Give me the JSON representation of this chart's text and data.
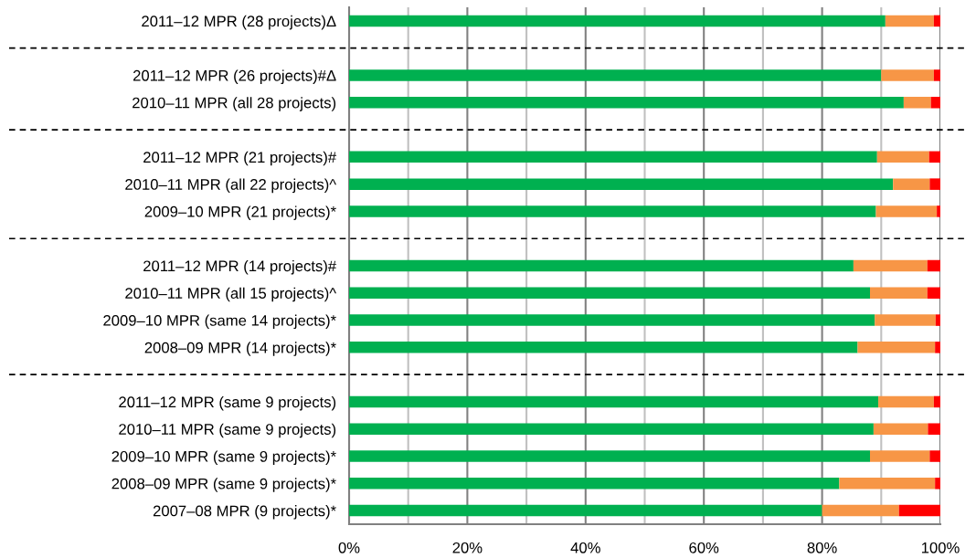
{
  "chart_data": {
    "type": "bar",
    "orientation": "horizontal",
    "stacked": true,
    "categories": [
      "2011–12 MPR (28 projects)Δ",
      null,
      "2011–12 MPR (26 projects)#Δ",
      "2010–11 MPR (all 28 projects)",
      null,
      "2011–12 MPR (21 projects)#",
      "2010–11 MPR (all 22 projects)^",
      "2009–10 MPR (21 projects)*",
      null,
      "2011–12 MPR (14 projects)#",
      "2010–11 MPR (all 15 projects)^",
      "2009–10 MPR (same 14 projects)*",
      "2008–09 MPR (14 projects)*",
      null,
      "2011–12 MPR (same 9 projects)",
      "2010–11 MPR (same 9 projects)",
      "2009–10 MPR (same 9 projects)*",
      "2008–09 MPR (same 9 projects)*",
      "2007–08 MPR (9 projects)*"
    ],
    "series": [
      {
        "color": "#00b050",
        "values": [
          90.7,
          null,
          90.0,
          93.8,
          null,
          89.3,
          92.0,
          89.1,
          null,
          85.3,
          88.1,
          88.9,
          86.0,
          null,
          89.5,
          88.7,
          88.1,
          82.9,
          80.0
        ]
      },
      {
        "color": "#f79646",
        "values": [
          8.2,
          null,
          8.9,
          4.6,
          null,
          8.8,
          6.2,
          10.3,
          null,
          12.5,
          9.7,
          10.3,
          13.1,
          null,
          9.4,
          9.2,
          10.1,
          16.2,
          13.0
        ]
      },
      {
        "color": "#ff0000",
        "values": [
          1.1,
          null,
          1.1,
          1.6,
          null,
          1.9,
          1.8,
          0.6,
          null,
          2.2,
          2.2,
          0.8,
          0.9,
          null,
          1.1,
          2.1,
          1.8,
          0.9,
          7.0
        ]
      }
    ],
    "xlim": [
      0,
      100
    ],
    "xticks": [
      {
        "value": 0,
        "label": "0%"
      },
      {
        "value": 10,
        "label": null
      },
      {
        "value": 20,
        "label": "20%"
      },
      {
        "value": 30,
        "label": null
      },
      {
        "value": 40,
        "label": "40%"
      },
      {
        "value": 50,
        "label": null
      },
      {
        "value": 60,
        "label": "60%"
      },
      {
        "value": 70,
        "label": null
      },
      {
        "value": 80,
        "label": "80%"
      },
      {
        "value": 90,
        "label": null
      },
      {
        "value": 100,
        "label": "100%"
      }
    ],
    "grid": "x"
  }
}
